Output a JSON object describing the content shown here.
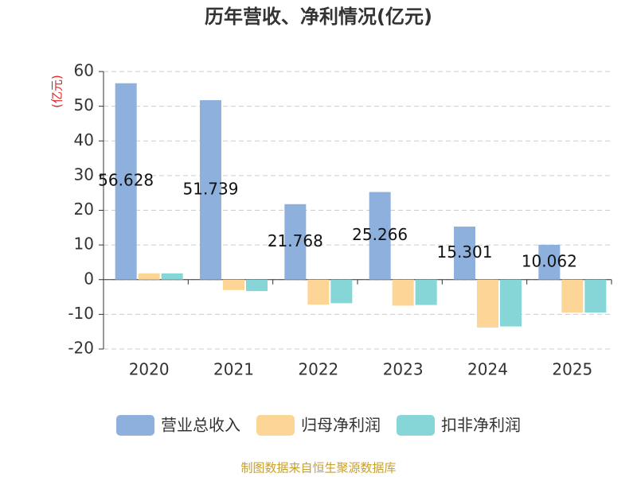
{
  "chart_data": {
    "type": "bar",
    "title": "历年营收、净利情况(亿元)",
    "y_label": "(亿元)",
    "categories": [
      "2020",
      "2021",
      "2022",
      "2023",
      "2024",
      "2025"
    ],
    "series": [
      {
        "name": "营业总收入",
        "color": "#8eb0dc",
        "values": [
          56.628,
          51.739,
          21.768,
          25.266,
          15.301,
          10.062
        ],
        "show_labels": true
      },
      {
        "name": "归母净利润",
        "color": "#fdd596",
        "values": [
          1.8,
          -3.0,
          -7.2,
          -7.5,
          -13.8,
          -9.5
        ]
      },
      {
        "name": "扣非净利润",
        "color": "#86d5d7",
        "values": [
          1.8,
          -3.3,
          -6.8,
          -7.3,
          -13.5,
          -9.5
        ]
      }
    ],
    "ylim": [
      -20,
      60
    ],
    "yticks": [
      -20,
      -10,
      0,
      10,
      20,
      30,
      40,
      50,
      60
    ],
    "grid": true,
    "source": "制图数据来自恒生聚源数据库"
  }
}
